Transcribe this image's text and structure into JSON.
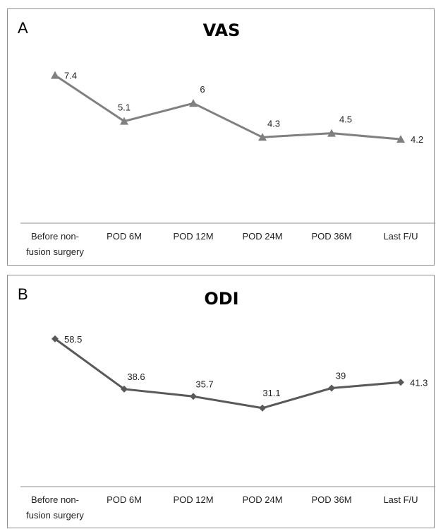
{
  "chart_data": [
    {
      "type": "line",
      "panel_label": "A",
      "title": "VAS",
      "categories": [
        "Before non-fusion surgery",
        "POD 6M",
        "POD 12M",
        "POD 24M",
        "POD 36M",
        "Last F/U"
      ],
      "category_lines": [
        [
          "Before non-",
          "fusion surgery"
        ],
        [
          "POD 6M"
        ],
        [
          "POD 12M"
        ],
        [
          "POD 24M"
        ],
        [
          "POD 36M"
        ],
        [
          "Last F/U"
        ]
      ],
      "series": [
        {
          "values": [
            7.4,
            5.1,
            6,
            4.3,
            4.5,
            4.2
          ],
          "marker": "triangle",
          "color": "#808080"
        }
      ],
      "data_labels": [
        "7.4",
        "5.1",
        "6",
        "4.3",
        "4.5",
        "4.2"
      ],
      "ylim": [
        0,
        10
      ],
      "grid": false,
      "xlabel": "",
      "ylabel": ""
    },
    {
      "type": "line",
      "panel_label": "B",
      "title": "ODI",
      "categories": [
        "Before non-fusion surgery",
        "POD 6M",
        "POD 12M",
        "POD 24M",
        "POD 36M",
        "Last F/U"
      ],
      "category_lines": [
        [
          "Before non-",
          "fusion surgery"
        ],
        [
          "POD 6M"
        ],
        [
          "POD 12M"
        ],
        [
          "POD 24M"
        ],
        [
          "POD 36M"
        ],
        [
          "Last F/U"
        ]
      ],
      "series": [
        {
          "values": [
            58.5,
            38.6,
            35.7,
            31.1,
            39,
            41.3
          ],
          "marker": "diamond",
          "color": "#595959"
        }
      ],
      "data_labels": [
        "58.5",
        "38.6",
        "35.7",
        "31.1",
        "39",
        "41.3"
      ],
      "ylim": [
        0,
        78
      ],
      "grid": false,
      "xlabel": "",
      "ylabel": ""
    }
  ]
}
